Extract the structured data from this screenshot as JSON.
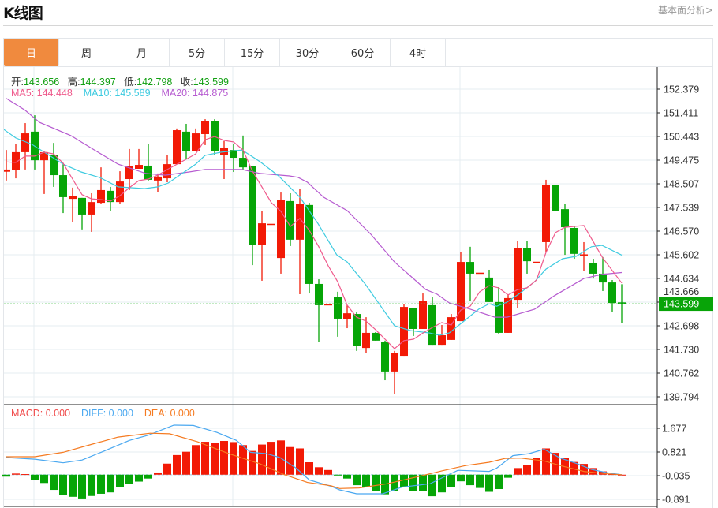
{
  "header": {
    "title": "K线图",
    "link": "基本面分析>"
  },
  "tabs": [
    {
      "label": "日",
      "active": true
    },
    {
      "label": "周",
      "active": false
    },
    {
      "label": "月",
      "active": false
    },
    {
      "label": "5分",
      "active": false
    },
    {
      "label": "15分",
      "active": false
    },
    {
      "label": "30分",
      "active": false
    },
    {
      "label": "60分",
      "active": false
    },
    {
      "label": "4时",
      "active": false
    }
  ],
  "ohlc_legend": {
    "open_label": "开:",
    "open": "143.656",
    "high_label": "高:",
    "high": "144.397",
    "low_label": "低:",
    "low": "142.798",
    "close_label": "收:",
    "close": "143.599"
  },
  "ma_legend": {
    "ma5": "MA5: 144.448",
    "ma10": "MA10: 145.589",
    "ma20": "MA20: 144.875"
  },
  "macd_legend": {
    "macd": "MACD: 0.000",
    "diff": "DIFF: 0.000",
    "dea": "DEA: 0.000"
  },
  "colors": {
    "up": "#f21a06",
    "down": "#06a507",
    "ma5": "#ef5a8c",
    "ma10": "#3fcbe0",
    "ma20": "#b65bd0",
    "diff": "#4aa8f0",
    "dea": "#f57a20",
    "tab_active": "#f08a3e"
  },
  "chart_data": {
    "type": "candlestick",
    "price_axis_labels": [
      "152.379",
      "151.411",
      "150.443",
      "149.475",
      "148.507",
      "147.539",
      "146.570",
      "145.602",
      "144.634",
      "143.666",
      "142.698",
      "141.730",
      "140.762",
      "139.794"
    ],
    "price_range": [
      139.794,
      152.379
    ],
    "current_price": "143.599",
    "candles": [
      [
        149.0,
        149.89,
        148.64,
        149.09
      ],
      [
        149.06,
        150.15,
        148.73,
        149.8
      ],
      [
        149.8,
        150.99,
        149.09,
        150.57
      ],
      [
        150.64,
        151.31,
        149.09,
        149.47
      ],
      [
        149.47,
        149.86,
        148.09,
        149.8
      ],
      [
        149.7,
        150.18,
        148.38,
        148.86
      ],
      [
        148.86,
        149.35,
        147.31,
        147.96
      ],
      [
        147.89,
        148.35,
        146.93,
        148.02
      ],
      [
        147.93,
        147.93,
        146.64,
        147.25
      ],
      [
        147.25,
        148.12,
        146.54,
        147.76
      ],
      [
        147.73,
        149.18,
        147.67,
        148.25
      ],
      [
        148.22,
        148.38,
        147.41,
        147.76
      ],
      [
        147.76,
        149.02,
        147.7,
        148.6
      ],
      [
        148.7,
        149.93,
        148.25,
        149.22
      ],
      [
        149.12,
        149.93,
        149.12,
        149.28
      ],
      [
        149.25,
        150.15,
        148.64,
        148.67
      ],
      [
        148.64,
        148.93,
        148.18,
        148.8
      ],
      [
        148.73,
        149.67,
        148.57,
        149.31
      ],
      [
        149.31,
        150.77,
        149.31,
        150.7
      ],
      [
        150.64,
        150.96,
        149.54,
        149.86
      ],
      [
        149.83,
        150.77,
        149.83,
        150.57
      ],
      [
        150.54,
        151.15,
        150.09,
        151.06
      ],
      [
        151.06,
        151.15,
        149.7,
        149.83
      ],
      [
        149.7,
        150.25,
        148.7,
        149.96
      ],
      [
        149.89,
        150.12,
        148.99,
        149.57
      ],
      [
        149.57,
        150.48,
        149.09,
        149.18
      ],
      [
        149.22,
        149.22,
        145.18,
        145.99
      ],
      [
        145.99,
        147.41,
        144.54,
        146.89
      ],
      [
        146.86,
        146.86,
        146.86,
        146.87
      ],
      [
        145.47,
        148.15,
        144.83,
        147.83
      ],
      [
        147.8,
        148.12,
        145.96,
        146.22
      ],
      [
        146.22,
        148.28,
        143.99,
        147.7
      ],
      [
        147.64,
        147.73,
        144.02,
        144.41
      ],
      [
        144.41,
        144.6,
        142.05,
        143.54
      ],
      [
        143.57,
        143.57,
        143.57,
        143.58
      ],
      [
        143.89,
        144.09,
        142.25,
        142.99
      ],
      [
        142.96,
        143.54,
        142.6,
        143.21
      ],
      [
        143.18,
        143.28,
        141.67,
        141.86
      ],
      [
        141.79,
        143.05,
        141.6,
        142.41
      ],
      [
        142.41,
        142.44,
        142.09,
        142.09
      ],
      [
        142.02,
        142.09,
        140.47,
        140.83
      ],
      [
        140.83,
        141.67,
        139.92,
        141.6
      ],
      [
        141.47,
        143.57,
        141.47,
        143.47
      ],
      [
        143.41,
        143.41,
        142.28,
        142.57
      ],
      [
        142.57,
        144.02,
        142.57,
        143.73
      ],
      [
        143.54,
        143.89,
        141.92,
        141.92
      ],
      [
        141.92,
        142.73,
        141.92,
        142.31
      ],
      [
        142.12,
        143.18,
        142.12,
        143.05
      ],
      [
        142.89,
        145.73,
        142.89,
        145.31
      ],
      [
        145.31,
        145.93,
        143.73,
        144.83
      ],
      [
        144.86,
        144.86,
        144.86,
        144.87
      ],
      [
        144.67,
        144.99,
        143.67,
        143.67
      ],
      [
        143.67,
        144.28,
        142.38,
        142.41
      ],
      [
        142.41,
        143.99,
        142.41,
        143.83
      ],
      [
        143.76,
        146.18,
        143.44,
        145.89
      ],
      [
        145.89,
        146.18,
        144.83,
        145.34
      ],
      [
        145.31,
        145.31,
        145.31,
        145.32
      ],
      [
        146.12,
        148.67,
        145.73,
        148.47
      ],
      [
        148.47,
        148.47,
        147.38,
        147.41
      ],
      [
        147.47,
        147.67,
        145.6,
        146.73
      ],
      [
        146.7,
        146.76,
        145.44,
        145.64
      ],
      [
        145.6,
        146.12,
        144.93,
        145.62
      ],
      [
        145.28,
        145.44,
        144.63,
        144.83
      ],
      [
        144.83,
        145.51,
        144.12,
        144.47
      ],
      [
        144.47,
        144.57,
        143.28,
        143.63
      ],
      [
        143.656,
        144.397,
        142.798,
        143.599
      ]
    ],
    "ma5": [
      [
        0,
        149.4
      ],
      [
        1,
        149.38
      ],
      [
        2,
        149.64
      ],
      [
        3,
        149.64
      ],
      [
        4,
        149.8
      ],
      [
        5,
        149.73
      ],
      [
        6,
        149.35
      ],
      [
        7,
        148.7
      ],
      [
        8,
        148.06
      ],
      [
        9,
        147.89
      ],
      [
        10,
        147.86
      ],
      [
        11,
        147.8
      ],
      [
        12,
        148.02
      ],
      [
        13,
        148.35
      ],
      [
        14,
        148.64
      ],
      [
        15,
        148.7
      ],
      [
        16,
        148.86
      ],
      [
        17,
        149.09
      ],
      [
        19,
        149.51
      ],
      [
        20,
        149.73
      ],
      [
        21,
        150.31
      ],
      [
        22,
        150.44
      ],
      [
        23,
        150.28
      ],
      [
        24,
        150.22
      ],
      [
        25,
        149.89
      ],
      [
        26,
        149.02
      ],
      [
        28,
        147.73
      ],
      [
        29,
        147.38
      ],
      [
        30,
        146.76
      ],
      [
        31,
        147.09
      ],
      [
        32,
        146.6
      ],
      [
        33,
        145.93
      ],
      [
        34,
        145.15
      ],
      [
        35,
        144.5
      ],
      [
        36,
        143.54
      ],
      [
        37,
        143.05
      ],
      [
        38,
        142.89
      ],
      [
        39,
        142.54
      ],
      [
        40,
        142.15
      ],
      [
        41,
        141.76
      ],
      [
        42,
        142.09
      ],
      [
        43,
        142.15
      ],
      [
        44,
        142.4
      ],
      [
        45,
        142.63
      ],
      [
        46,
        142.83
      ],
      [
        47,
        142.73
      ],
      [
        48,
        143.34
      ],
      [
        49,
        143.5
      ],
      [
        50,
        144.09
      ],
      [
        51,
        144.34
      ],
      [
        52,
        144.25
      ],
      [
        53,
        143.96
      ],
      [
        54,
        144.18
      ],
      [
        55,
        144.25
      ],
      [
        56,
        144.57
      ],
      [
        57,
        145.7
      ],
      [
        58,
        146.51
      ],
      [
        59,
        146.73
      ],
      [
        61,
        146.8
      ],
      [
        63,
        145.47
      ],
      [
        65,
        144.448
      ]
    ],
    "ma10": [
      [
        -0.4,
        150.77
      ],
      [
        1,
        150.38
      ],
      [
        2.7,
        150.12
      ],
      [
        4.3,
        149.73
      ],
      [
        6,
        149.31
      ],
      [
        7.9,
        148.99
      ],
      [
        9.9,
        148.76
      ],
      [
        11.8,
        148.38
      ],
      [
        14.6,
        148.31
      ],
      [
        16,
        148.38
      ],
      [
        17.1,
        148.54
      ],
      [
        20,
        149.31
      ],
      [
        21,
        149.67
      ],
      [
        22.7,
        149.8
      ],
      [
        24.9,
        149.89
      ],
      [
        26.8,
        149.41
      ],
      [
        28.75,
        148.83
      ],
      [
        31,
        147.96
      ],
      [
        32.9,
        146.89
      ],
      [
        34.9,
        145.6
      ],
      [
        36,
        145.31
      ],
      [
        37.9,
        144.41
      ],
      [
        41,
        142.7
      ],
      [
        42.7,
        142.5
      ],
      [
        44.75,
        142.4
      ],
      [
        45.75,
        142.31
      ],
      [
        46.8,
        142.41
      ],
      [
        48.75,
        143.02
      ],
      [
        49.9,
        143.38
      ],
      [
        51,
        143.6
      ],
      [
        51.8,
        143.5
      ],
      [
        52.9,
        143.67
      ],
      [
        54.1,
        143.99
      ],
      [
        55.8,
        144.5
      ],
      [
        57,
        145.02
      ],
      [
        58.75,
        145.44
      ],
      [
        60.2,
        145.54
      ],
      [
        61.8,
        145.93
      ],
      [
        62.9,
        145.99
      ],
      [
        65,
        145.589
      ]
    ],
    "ma20": [
      [
        0,
        152.0
      ],
      [
        2,
        151.51
      ],
      [
        3.5,
        151.02
      ],
      [
        6.8,
        150.48
      ],
      [
        9.3,
        149.89
      ],
      [
        11.8,
        149.31
      ],
      [
        14.75,
        148.93
      ],
      [
        16.8,
        148.86
      ],
      [
        19.3,
        148.99
      ],
      [
        21,
        149.09
      ],
      [
        24.9,
        149.09
      ],
      [
        26.8,
        148.93
      ],
      [
        29.9,
        148.83
      ],
      [
        30.8,
        148.77
      ],
      [
        31.8,
        148.57
      ],
      [
        33.5,
        147.96
      ],
      [
        36,
        147.41
      ],
      [
        38.5,
        146.44
      ],
      [
        41,
        145.31
      ],
      [
        42.7,
        144.73
      ],
      [
        44.3,
        144.18
      ],
      [
        45.5,
        143.99
      ],
      [
        46.8,
        143.63
      ],
      [
        49,
        143.38
      ],
      [
        51.6,
        143.05
      ],
      [
        52.9,
        143.05
      ],
      [
        55.8,
        143.38
      ],
      [
        57.9,
        143.93
      ],
      [
        61,
        144.63
      ],
      [
        62.9,
        144.8
      ],
      [
        65,
        144.875
      ]
    ],
    "macd_axis_labels": [
      "1.677",
      "0.821",
      "-0.035",
      "-0.891"
    ],
    "macd_hist": [
      -0.07,
      0.04,
      0.02,
      -0.19,
      -0.3,
      -0.55,
      -0.73,
      -0.8,
      -0.86,
      -0.77,
      -0.69,
      -0.64,
      -0.46,
      -0.33,
      -0.25,
      -0.14,
      0.08,
      0.4,
      0.71,
      0.83,
      1.07,
      1.19,
      1.16,
      1.22,
      1.18,
      1.07,
      0.86,
      1.09,
      1.19,
      1.24,
      1.0,
      0.95,
      0.45,
      0.27,
      0.17,
      -0.01,
      -0.14,
      -0.38,
      -0.45,
      -0.6,
      -0.71,
      -0.58,
      -0.46,
      -0.6,
      -0.6,
      -0.78,
      -0.64,
      -0.45,
      -0.24,
      -0.38,
      -0.48,
      -0.62,
      -0.52,
      -0.11,
      0.24,
      0.36,
      0.62,
      0.95,
      0.79,
      0.62,
      0.46,
      0.39,
      0.24,
      0.12,
      0.02,
      0.0
    ],
    "diff": [
      [
        0,
        0.62
      ],
      [
        3,
        0.56
      ],
      [
        6,
        0.43
      ],
      [
        8,
        0.53
      ],
      [
        10,
        0.81
      ],
      [
        13,
        1.24
      ],
      [
        15,
        1.43
      ],
      [
        17.7,
        1.79
      ],
      [
        19.75,
        1.78
      ],
      [
        22.25,
        1.53
      ],
      [
        24.3,
        1.24
      ],
      [
        25.8,
        0.81
      ],
      [
        27.5,
        0.76
      ],
      [
        28.9,
        0.62
      ],
      [
        30.6,
        0.24
      ],
      [
        32,
        -0.19
      ],
      [
        34.3,
        -0.42
      ],
      [
        35.2,
        -0.55
      ],
      [
        37,
        -0.69
      ],
      [
        39.75,
        -0.69
      ],
      [
        41.8,
        -0.45
      ],
      [
        44.75,
        -0.33
      ],
      [
        46.4,
        -0.05
      ],
      [
        47.7,
        0.16
      ],
      [
        51,
        0.12
      ],
      [
        51.8,
        0.24
      ],
      [
        53.5,
        0.69
      ],
      [
        55.2,
        0.76
      ],
      [
        56.8,
        0.92
      ],
      [
        58.5,
        0.6
      ],
      [
        60.2,
        0.41
      ],
      [
        61.8,
        0.19
      ],
      [
        63.5,
        0.07
      ],
      [
        65,
        0.0
      ]
    ],
    "dea": [
      [
        0,
        0.65
      ],
      [
        3,
        0.65
      ],
      [
        6,
        0.81
      ],
      [
        8.5,
        1.05
      ],
      [
        11.8,
        1.36
      ],
      [
        15.2,
        1.5
      ],
      [
        17.25,
        1.48
      ],
      [
        20.2,
        1.19
      ],
      [
        23.5,
        0.76
      ],
      [
        26.8,
        0.39
      ],
      [
        29.3,
        0.01
      ],
      [
        31.8,
        -0.28
      ],
      [
        34.3,
        -0.4
      ],
      [
        35.2,
        -0.5
      ],
      [
        37.25,
        -0.48
      ],
      [
        40.2,
        -0.33
      ],
      [
        43.5,
        -0.07
      ],
      [
        46,
        0.14
      ],
      [
        48.5,
        0.33
      ],
      [
        51,
        0.45
      ],
      [
        52.7,
        0.59
      ],
      [
        54.3,
        0.6
      ],
      [
        56.8,
        0.5
      ],
      [
        58.5,
        0.33
      ],
      [
        61,
        0.12
      ],
      [
        63.5,
        0.03
      ],
      [
        65,
        0.0
      ]
    ]
  }
}
